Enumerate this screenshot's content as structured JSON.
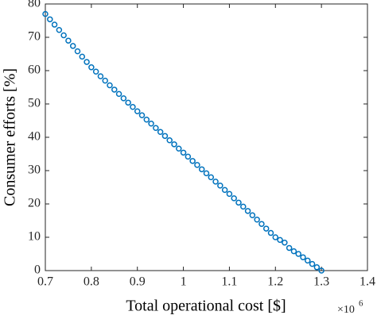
{
  "chart_data": {
    "type": "scatter",
    "x_label": "Total operational cost [$]",
    "y_label": "Consumer efforts [%]",
    "x_multiplier": {
      "base": "×10",
      "exponent": "6"
    },
    "xlim": [
      0.7,
      1.4
    ],
    "xticks": [
      0.7,
      0.8,
      0.9,
      1,
      1.1,
      1.2,
      1.3,
      1.4
    ],
    "ylim": [
      0,
      80
    ],
    "yticks": [
      0,
      10,
      20,
      30,
      40,
      50,
      60,
      70,
      80
    ],
    "grid": false,
    "series": [
      {
        "color": "#0072bd",
        "x": [
          0.7,
          0.71,
          0.72,
          0.73,
          0.74,
          0.75,
          0.76,
          0.77,
          0.78,
          0.79,
          0.8,
          0.81,
          0.82,
          0.83,
          0.84,
          0.85,
          0.86,
          0.87,
          0.88,
          0.89,
          0.9,
          0.91,
          0.92,
          0.93,
          0.94,
          0.95,
          0.96,
          0.97,
          0.98,
          0.99,
          1.0,
          1.01,
          1.02,
          1.03,
          1.04,
          1.05,
          1.06,
          1.07,
          1.08,
          1.09,
          1.1,
          1.11,
          1.12,
          1.13,
          1.14,
          1.15,
          1.16,
          1.17,
          1.18,
          1.19,
          1.2,
          1.21,
          1.22,
          1.23,
          1.24,
          1.25,
          1.26,
          1.27,
          1.28,
          1.29,
          1.3
        ],
        "values": [
          77,
          75.4,
          73.8,
          72.2,
          70.6,
          69,
          67.4,
          65.8,
          64.2,
          62.6,
          61,
          59.7,
          58.3,
          57,
          55.6,
          54.3,
          53,
          51.7,
          50.4,
          49.1,
          47.8,
          46.6,
          45.3,
          44.1,
          42.8,
          41.6,
          40.4,
          39.1,
          37.9,
          36.6,
          35.4,
          34.2,
          32.9,
          31.7,
          30.4,
          29.2,
          28,
          26.7,
          25.5,
          24.2,
          23,
          21.7,
          20.4,
          19.2,
          17.9,
          16.6,
          15.3,
          14,
          12.6,
          11.3,
          10,
          9.2,
          8.4,
          6.8,
          5.8,
          5,
          4,
          3,
          2,
          1,
          0
        ]
      }
    ]
  }
}
